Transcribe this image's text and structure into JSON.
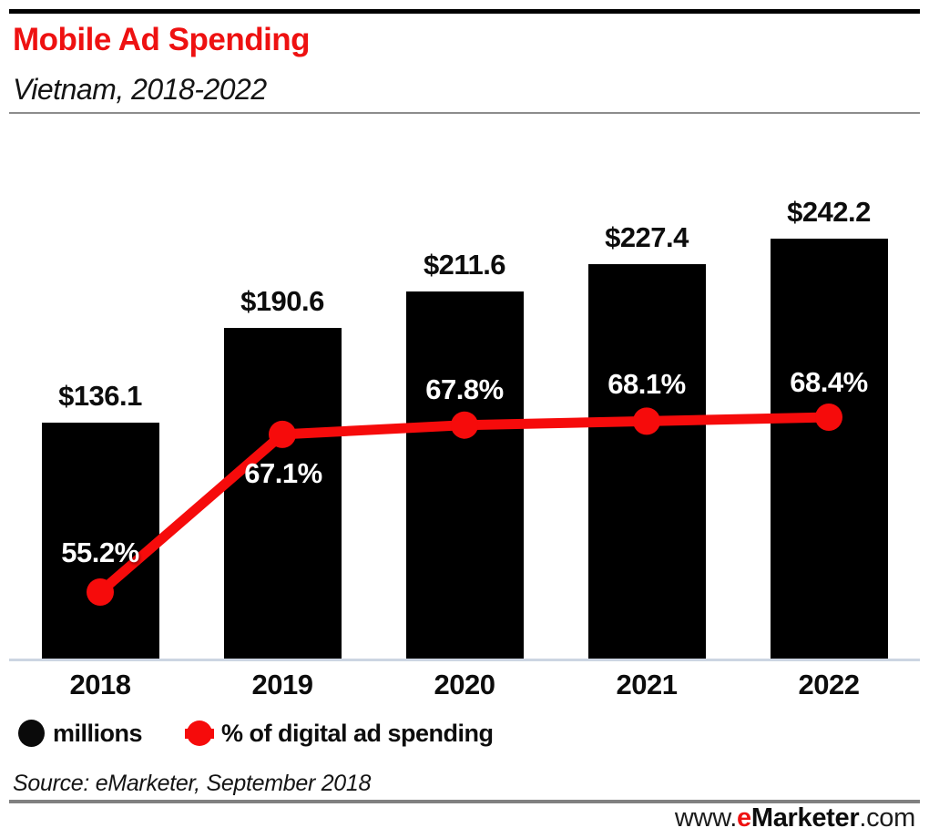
{
  "header": {
    "title": "Mobile Ad Spending",
    "subtitle": "Vietnam, 2018-2022"
  },
  "legend": {
    "items": [
      {
        "icon": "black-circle-icon",
        "label": "millions"
      },
      {
        "icon": "red-line-dot-icon",
        "label": "% of digital ad spending"
      }
    ]
  },
  "footer": {
    "source": "Source: eMarketer, September 2018",
    "site": {
      "www": "www.",
      "e": "e",
      "marketer": "Marketer",
      "com": ".com"
    }
  },
  "colors": {
    "title_red": "#ee1111",
    "series_red": "#f60b0b",
    "bar_black": "#000000",
    "axis_baseline": "#ccd5e2",
    "divider_gray": "#8c8c8c",
    "footer_rule_gray": "#808080"
  },
  "chart_data": {
    "type": "bar",
    "title": "Mobile Ad Spending, Vietnam, 2018-2022",
    "categories": [
      "2018",
      "2019",
      "2020",
      "2021",
      "2022"
    ],
    "series": [
      {
        "name": "millions",
        "type": "bar",
        "unit": "US$ millions",
        "values": [
          136.1,
          190.6,
          211.6,
          227.4,
          242.2
        ],
        "labels": [
          "$136.1",
          "$190.6",
          "$211.6",
          "$227.4",
          "$242.2"
        ],
        "color": "#000000"
      },
      {
        "name": "% of digital ad spending",
        "type": "line",
        "unit": "%",
        "values": [
          55.2,
          67.1,
          67.8,
          68.1,
          68.4
        ],
        "labels": [
          "55.2%",
          "67.1%",
          "67.8%",
          "68.1%",
          "68.4%"
        ],
        "color": "#f60b0b"
      }
    ],
    "xlabel": "",
    "ylabel": "",
    "grid": false,
    "legend_position": "bottom"
  }
}
